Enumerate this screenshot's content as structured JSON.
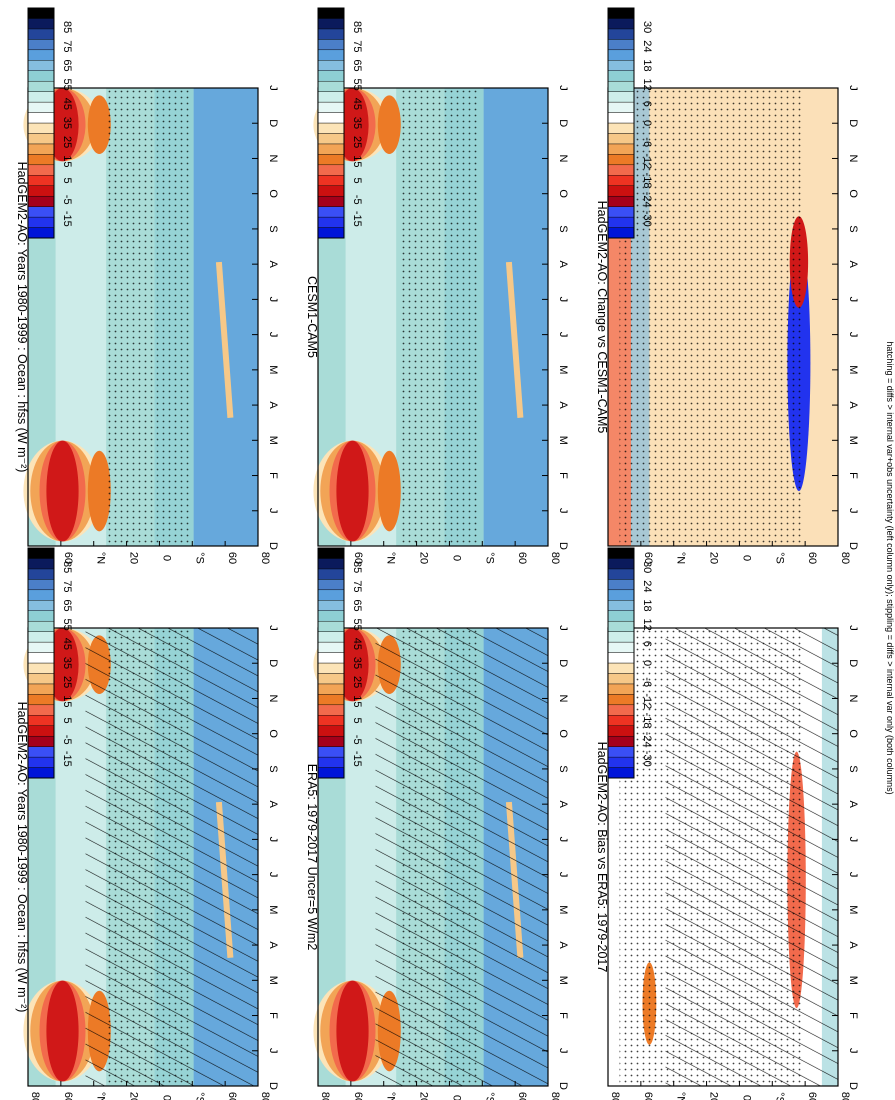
{
  "figure": {
    "footnote": "hatching = diffs > internal var+obs uncertainty (left column only); stippling = diffs > internal var only (both columns)",
    "rotated": true
  },
  "chart_data": [
    {
      "type": "heatmap",
      "title": "HadGEM2-AO: Years 1980-1999 : Ocean : hfss (W m⁻²)",
      "x": [
        "D",
        "J",
        "F",
        "M",
        "A",
        "M",
        "J",
        "J",
        "A",
        "S",
        "O",
        "N",
        "D",
        "J"
      ],
      "y_ticks": [
        "80",
        "60",
        "°N",
        "20",
        "0",
        "°S",
        "60",
        "80"
      ],
      "colorbar": {
        "labels": [
          "85",
          "75",
          "65",
          "55",
          "45",
          "35",
          "25",
          "15",
          "5",
          "-5",
          "-15"
        ],
        "colors": [
          "#0015d9",
          "#2233ee",
          "#a5001a",
          "#cc1010",
          "#ee3322",
          "#f27050",
          "#ec7a26",
          "#f2a456",
          "#f6c888",
          "#fce4b8",
          "#ffffff",
          "#e6f7f5",
          "#cdeeea",
          "#a8dcd8",
          "#8ecfd4",
          "#85bee0",
          "#5a9fdd",
          "#4b7fc9",
          "#23459a",
          "#0b1a5c",
          "#000000"
        ]
      },
      "features": "warm maxima near 60N in NH winter; weak warm patch near 65S in austral winter",
      "hatching": true,
      "stippling": true
    },
    {
      "type": "heatmap",
      "title": "HadGEM2-AO: Years 1980-1999 : Ocean : hfss (W m⁻²)",
      "x": [
        "D",
        "J",
        "F",
        "M",
        "A",
        "M",
        "J",
        "J",
        "A",
        "S",
        "O",
        "N",
        "D",
        "J"
      ],
      "y_ticks": [
        "80",
        "60",
        "°N",
        "20",
        "0",
        "°S",
        "60",
        "80"
      ],
      "colorbar": {
        "labels": [
          "85",
          "75",
          "65",
          "55",
          "45",
          "35",
          "25",
          "15",
          "5",
          "-5",
          "-15"
        ]
      },
      "hatching": false,
      "stippling": true
    },
    {
      "type": "heatmap",
      "title": "ERA5: 1979-2017 Uncer=5 W/m2",
      "x": [
        "D",
        "J",
        "F",
        "M",
        "A",
        "M",
        "J",
        "J",
        "A",
        "S",
        "O",
        "N",
        "D",
        "J"
      ],
      "y_ticks": [
        "80",
        "60",
        "°N",
        "20",
        "0",
        "°S",
        "60",
        "80"
      ],
      "colorbar": {
        "labels": [
          "85",
          "75",
          "65",
          "55",
          "45",
          "35",
          "25",
          "15",
          "5",
          "-5",
          "-15"
        ]
      },
      "hatching": true,
      "stippling": true
    },
    {
      "type": "heatmap",
      "title": "CESM1-CAM5",
      "x": [
        "D",
        "J",
        "F",
        "M",
        "A",
        "M",
        "J",
        "J",
        "A",
        "S",
        "O",
        "N",
        "D",
        "J"
      ],
      "y_ticks": [
        "80",
        "60",
        "°N",
        "20",
        "0",
        "°S",
        "60",
        "80"
      ],
      "colorbar": {
        "labels": [
          "85",
          "75",
          "65",
          "55",
          "45",
          "35",
          "25",
          "15",
          "5",
          "-5",
          "-15"
        ]
      },
      "hatching": false,
      "stippling": true
    },
    {
      "type": "heatmap",
      "title": "HadGEM2-AO: Bias vs ERA5: 1979-2017",
      "x": [
        "D",
        "J",
        "F",
        "M",
        "A",
        "M",
        "J",
        "J",
        "A",
        "S",
        "O",
        "N",
        "D",
        "J"
      ],
      "y_ticks": [
        "80",
        "60",
        "°N",
        "20",
        "0",
        "°S",
        "60",
        "80"
      ],
      "colorbar": {
        "labels": [
          "30",
          "24",
          "18",
          "12",
          "6",
          "0",
          "-6",
          "-12",
          "-18",
          "-24",
          "-30"
        ]
      },
      "hatching": true,
      "stippling": true
    },
    {
      "type": "heatmap",
      "title": "HadGEM2-AO: Change vs CESM1-CAM5",
      "x": [
        "D",
        "J",
        "F",
        "M",
        "A",
        "M",
        "J",
        "J",
        "A",
        "S",
        "O",
        "N",
        "D",
        "J"
      ],
      "y_ticks": [
        "80",
        "60",
        "°N",
        "20",
        "0",
        "°S",
        "60",
        "80"
      ],
      "colorbar": {
        "labels": [
          "30",
          "24",
          "18",
          "12",
          "6",
          "0",
          "-6",
          "-12",
          "-18",
          "-24",
          "-30"
        ]
      },
      "hatching": false,
      "stippling": true
    }
  ]
}
